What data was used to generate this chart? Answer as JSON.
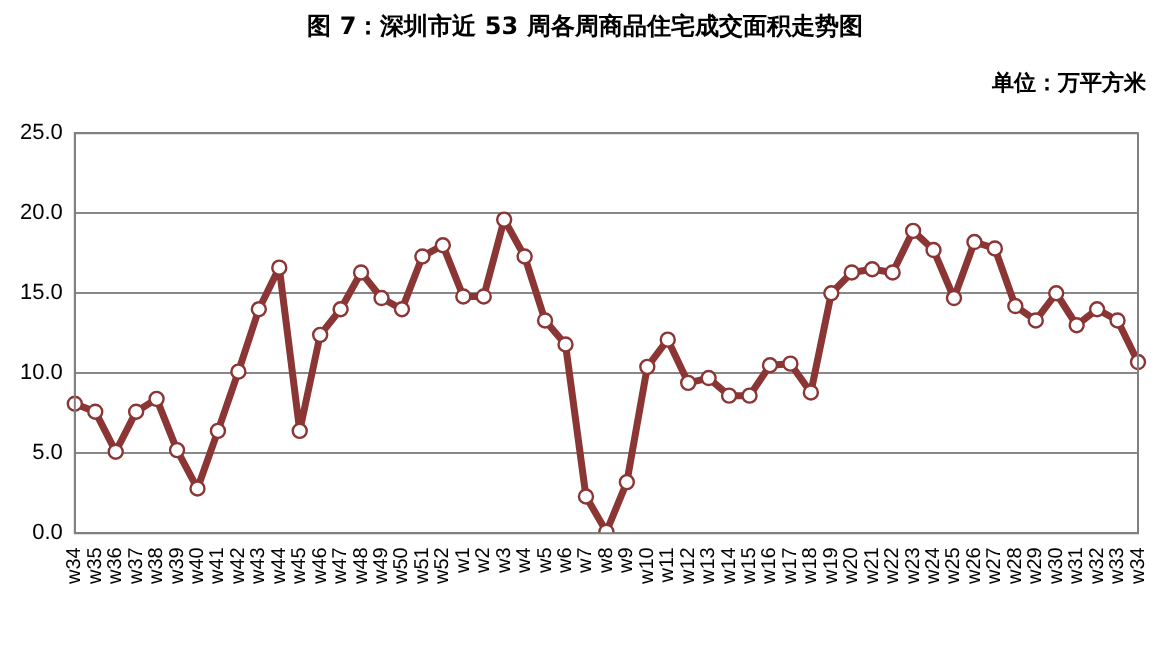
{
  "chart_data": {
    "type": "line",
    "title": "图 7：深圳市近 53 周各周商品住宅成交面积走势图",
    "subtitle": "单位：万平方米",
    "categories": [
      "w34",
      "w35",
      "w36",
      "w37",
      "w38",
      "w39",
      "w40",
      "w41",
      "w42",
      "w43",
      "w44",
      "w45",
      "w46",
      "w47",
      "w48",
      "w49",
      "w50",
      "w51",
      "w52",
      "w1",
      "w2",
      "w3",
      "w4",
      "w5",
      "w6",
      "w7",
      "w8",
      "w9",
      "w10",
      "w11",
      "w12",
      "w13",
      "w14",
      "w15",
      "w16",
      "w17",
      "w18",
      "w19",
      "w20",
      "w21",
      "w22",
      "w23",
      "w24",
      "w25",
      "w26",
      "w27",
      "w28",
      "w29",
      "w30",
      "w31",
      "w32",
      "w33",
      "w34"
    ],
    "series": [
      {
        "color": "#8b3535",
        "values": [
          8.1,
          7.6,
          5.1,
          7.6,
          8.4,
          5.2,
          2.8,
          6.4,
          10.1,
          14.0,
          16.6,
          6.4,
          12.4,
          14.0,
          16.3,
          14.7,
          14.0,
          17.3,
          18.0,
          14.8,
          14.8,
          19.6,
          17.3,
          13.3,
          11.8,
          2.3,
          0.1,
          3.2,
          10.4,
          12.1,
          9.4,
          9.7,
          8.6,
          8.6,
          10.5,
          10.6,
          8.8,
          15.0,
          16.3,
          16.5,
          16.3,
          18.9,
          17.7,
          14.7,
          18.2,
          17.8,
          14.2,
          13.3,
          15.0,
          13.0,
          14.0,
          13.3,
          10.7
        ]
      }
    ],
    "ylim": [
      0,
      25
    ],
    "yticks": [
      {
        "value": 0,
        "label": "0.0"
      },
      {
        "value": 5,
        "label": "5.0"
      },
      {
        "value": 10,
        "label": "10.0"
      },
      {
        "value": 15,
        "label": "15.0"
      },
      {
        "value": 20,
        "label": "20.0"
      },
      {
        "value": 25,
        "label": "25.0"
      }
    ],
    "grid": "y",
    "legend": false,
    "marker": "circle",
    "line_style": "solid"
  }
}
